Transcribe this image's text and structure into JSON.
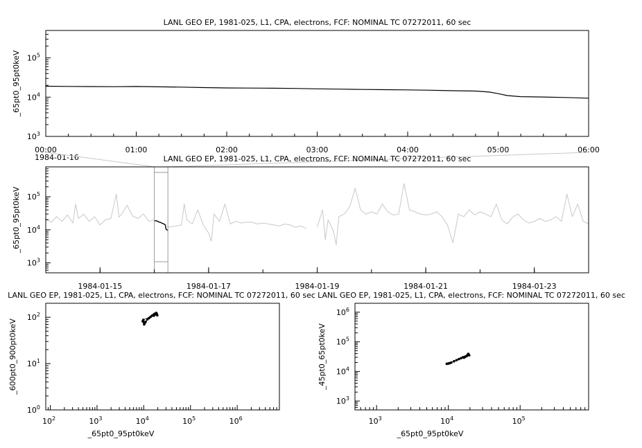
{
  "chart_data": [
    {
      "type": "line",
      "title": "LANL GEO EP, 1981-025, L1, CPA, electrons, FCF: NOMINAL TC 07272011, 60 sec",
      "ylabel": "_65pt0_95pt0keV",
      "yscale": "log",
      "ylim": [
        1000,
        500000
      ],
      "xlim": [
        "00:00",
        "06:00"
      ],
      "x_ticks": [
        "00:00",
        "01:00",
        "02:00",
        "03:00",
        "04:00",
        "05:00",
        "06:00"
      ],
      "x_ticks_hours": [
        0,
        1,
        2,
        3,
        4,
        5,
        6
      ],
      "y_ticks": [
        {
          "base": "10",
          "exp": "3",
          "value": 1000
        },
        {
          "base": "10",
          "exp": "4",
          "value": 10000
        },
        {
          "base": "10",
          "exp": "5",
          "value": 100000
        }
      ],
      "date_label": "1984-01-16",
      "series": [
        {
          "color": "#000000",
          "x_hours": [
            0,
            0.25,
            0.5,
            0.75,
            1.0,
            1.25,
            1.5,
            1.75,
            2.0,
            2.25,
            2.5,
            2.75,
            3.0,
            3.25,
            3.5,
            3.75,
            4.0,
            4.25,
            4.5,
            4.75,
            4.9,
            5.0,
            5.1,
            5.25,
            5.5,
            5.75,
            6.0
          ],
          "values": [
            19000,
            18800,
            18600,
            18500,
            18700,
            18300,
            18000,
            17500,
            17200,
            17000,
            16900,
            16700,
            16300,
            16000,
            15700,
            15500,
            15300,
            15000,
            14600,
            14300,
            13500,
            12300,
            11000,
            10300,
            10100,
            9800,
            9400
          ]
        }
      ]
    },
    {
      "type": "line",
      "title": "LANL GEO EP, 1981-025, L1, CPA, electrons, FCF: NOMINAL TC 07272011, 60 sec",
      "ylabel": "_65pt0_95pt0keV",
      "yscale": "log",
      "ylim": [
        500,
        800000
      ],
      "xlim_days": [
        13.0,
        23.0
      ],
      "x_ticks": [
        "1984-01-15",
        "1984-01-17",
        "1984-01-19",
        "1984-01-21",
        "1984-01-23"
      ],
      "x_ticks_days": [
        14.0,
        16.0,
        18.0,
        20.0,
        22.0
      ],
      "y_ticks": [
        {
          "base": "10",
          "exp": "3",
          "value": 1000
        },
        {
          "base": "10",
          "exp": "4",
          "value": 10000
        },
        {
          "base": "10",
          "exp": "5",
          "value": 100000
        }
      ],
      "highlight_range_days": [
        15.0,
        15.25
      ],
      "series": [
        {
          "color": "#c8c8c8",
          "x_days": [
            13.0,
            13.1,
            13.2,
            13.3,
            13.4,
            13.5,
            13.55,
            13.6,
            13.7,
            13.8,
            13.9,
            14.0,
            14.1,
            14.2,
            14.3,
            14.35,
            14.4,
            14.5,
            14.6,
            14.7,
            14.8,
            14.9,
            15.0
          ],
          "values": [
            22000,
            17000,
            25000,
            18000,
            28000,
            16000,
            60000,
            22000,
            30000,
            18000,
            25000,
            14000,
            20000,
            22000,
            120000,
            24000,
            30000,
            55000,
            26000,
            22000,
            30000,
            18000,
            20000
          ]
        },
        {
          "color": "#c8c8c8",
          "x_days": [
            15.25,
            15.4,
            15.5,
            15.55,
            15.6,
            15.7,
            15.8,
            15.9,
            16.0,
            16.05,
            16.1,
            16.2,
            16.3,
            16.4,
            16.5,
            16.6,
            16.7,
            16.8,
            16.9,
            17.0,
            17.1,
            17.2,
            17.3,
            17.4,
            17.5,
            17.6,
            17.7,
            17.8
          ],
          "values": [
            12000,
            13000,
            14000,
            60000,
            20000,
            15000,
            40000,
            14000,
            8000,
            4500,
            30000,
            18000,
            60000,
            15000,
            18000,
            16000,
            17000,
            17000,
            15000,
            16000,
            15000,
            14000,
            13000,
            15000,
            14000,
            12000,
            13000,
            11000
          ]
        },
        {
          "color": "#c8c8c8",
          "x_days": [
            18.0,
            18.1,
            18.15,
            18.2,
            18.3,
            18.35,
            18.4,
            18.5,
            18.6,
            18.7,
            18.8,
            18.9,
            19.0,
            19.1,
            19.2,
            19.3,
            19.4,
            19.5,
            19.6,
            19.7,
            19.8,
            19.9,
            20.0,
            20.1,
            20.2,
            20.3,
            20.4,
            20.5,
            20.6,
            20.7,
            20.8,
            20.9,
            21.0,
            21.1,
            21.2,
            21.3,
            21.4,
            21.5,
            21.6,
            21.7,
            21.8,
            21.9,
            22.0,
            22.1,
            22.2,
            22.3,
            22.4,
            22.5,
            22.6,
            22.7,
            22.8,
            22.9,
            23.0
          ],
          "values": [
            12000,
            40000,
            5000,
            20000,
            9000,
            3500,
            25000,
            30000,
            50000,
            180000,
            40000,
            30000,
            35000,
            30000,
            60000,
            35000,
            28000,
            30000,
            250000,
            40000,
            35000,
            30000,
            28000,
            30000,
            35000,
            25000,
            14000,
            4000,
            30000,
            25000,
            40000,
            28000,
            35000,
            30000,
            25000,
            60000,
            20000,
            15000,
            24000,
            30000,
            20000,
            16000,
            18000,
            22000,
            18000,
            20000,
            25000,
            18000,
            120000,
            25000,
            60000,
            18000,
            15000
          ]
        }
      ]
    },
    {
      "type": "scatter",
      "title": "LANL GEO EP, 1981-025, L1, CPA, electrons, FCF: NOMINAL TC 07272011, 60 sec",
      "xlabel": "_65pt0_95pt0keV",
      "ylabel": "_600pt0_900pt0keV",
      "xscale": "log",
      "yscale": "log",
      "xlim": [
        80,
        8000000
      ],
      "ylim": [
        1,
        200
      ],
      "x_ticks": [
        {
          "base": "10",
          "exp": "2",
          "value": 100
        },
        {
          "base": "10",
          "exp": "3",
          "value": 1000
        },
        {
          "base": "10",
          "exp": "4",
          "value": 10000
        },
        {
          "base": "10",
          "exp": "5",
          "value": 100000
        },
        {
          "base": "10",
          "exp": "6",
          "value": 1000000
        }
      ],
      "y_ticks": [
        {
          "base": "10",
          "exp": "0",
          "value": 1
        },
        {
          "base": "10",
          "exp": "1",
          "value": 10
        },
        {
          "base": "10",
          "exp": "2",
          "value": 100
        }
      ],
      "series": [
        {
          "color": "#000000",
          "x": [
            9500,
            10000,
            10500,
            11000,
            12000,
            13000,
            14000,
            15000,
            16000,
            17000,
            18000,
            18500,
            19000,
            19500,
            17500,
            16500,
            9800,
            10200
          ],
          "y": [
            82,
            78,
            74,
            80,
            90,
            96,
            102,
            108,
            112,
            118,
            120,
            124,
            118,
            110,
            115,
            108,
            88,
            70
          ]
        }
      ]
    },
    {
      "type": "scatter",
      "title": "LANL GEO EP, 1981-025, L1, CPA, electrons, FCF: NOMINAL TC 07272011, 60 sec",
      "xlabel": "_65pt0_95pt0keV",
      "ylabel": "_45pt0_65pt0keV",
      "xscale": "log",
      "yscale": "log",
      "xlim": [
        500,
        900000
      ],
      "ylim": [
        500,
        2000000
      ],
      "x_ticks": [
        {
          "base": "10",
          "exp": "3",
          "value": 1000
        },
        {
          "base": "10",
          "exp": "4",
          "value": 10000
        },
        {
          "base": "10",
          "exp": "5",
          "value": 100000
        }
      ],
      "y_ticks": [
        {
          "base": "10",
          "exp": "3",
          "value": 1000
        },
        {
          "base": "10",
          "exp": "4",
          "value": 10000
        },
        {
          "base": "10",
          "exp": "5",
          "value": 100000
        },
        {
          "base": "10",
          "exp": "6",
          "value": 1000000
        }
      ],
      "series": [
        {
          "color": "#000000",
          "x": [
            9500,
            10000,
            10500,
            11000,
            12000,
            13000,
            14000,
            15000,
            16000,
            17000,
            18000,
            18500,
            19000,
            19500,
            17500,
            16500
          ],
          "y": [
            18000,
            18500,
            19000,
            20000,
            22000,
            24000,
            26000,
            28000,
            30000,
            31000,
            33000,
            36000,
            39000,
            35000,
            32000,
            29000
          ]
        }
      ]
    }
  ]
}
